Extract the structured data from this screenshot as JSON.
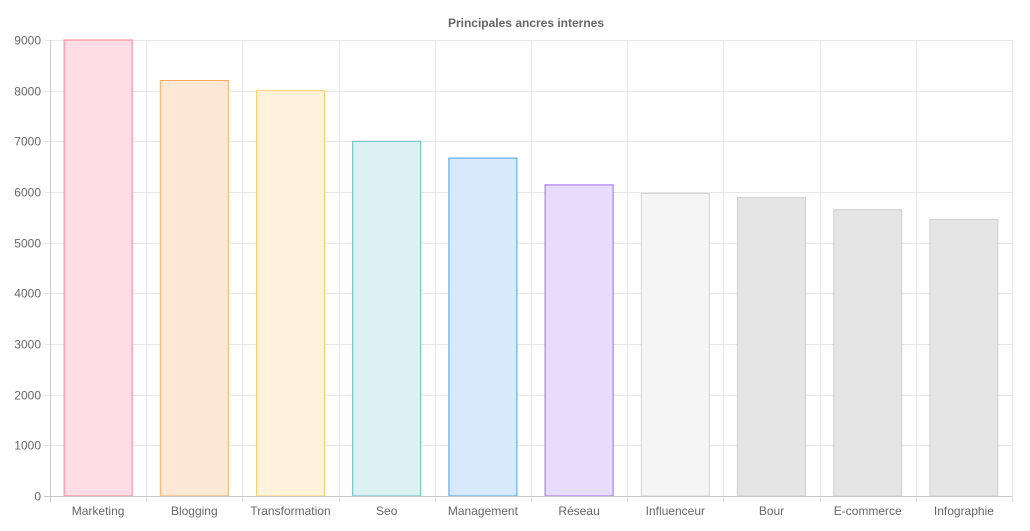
{
  "chart_data": {
    "type": "bar",
    "title": "Principales ancres internes",
    "xlabel": "",
    "ylabel": "",
    "categories": [
      "Marketing",
      "Blogging",
      "Transformation",
      "Seo",
      "Management",
      "Réseau",
      "Influenceur",
      "Bour",
      "E-commerce",
      "Infographie"
    ],
    "values": [
      9000,
      8200,
      8000,
      7000,
      6670,
      6140,
      5970,
      5890,
      5650,
      5460
    ],
    "ylim": [
      0,
      9000
    ],
    "yticks": [
      "0",
      "1000",
      "2000",
      "3000",
      "4000",
      "5000",
      "6000",
      "7000",
      "8000",
      "9000"
    ],
    "grid": true,
    "legend": "none",
    "bar_colors": [
      {
        "fill": "#ffdde4",
        "stroke": "#ff7f99"
      },
      {
        "fill": "#ffe9d6",
        "stroke": "#ffab5c"
      },
      {
        "fill": "#fff3dc",
        "stroke": "#ffcf6a"
      },
      {
        "fill": "#dbf1f2",
        "stroke": "#5cbfbf"
      },
      {
        "fill": "#d7eafb",
        "stroke": "#48a4e8"
      },
      {
        "fill": "#e8dcfd",
        "stroke": "#9c6cf0"
      },
      {
        "fill": "#f5f5f6",
        "stroke": "#d3d4d6"
      },
      {
        "fill": "#e5e5e5",
        "stroke": "#cfcfcf"
      },
      {
        "fill": "#e5e5e5",
        "stroke": "#cfcfcf"
      },
      {
        "fill": "#e5e5e5",
        "stroke": "#cfcfcf"
      }
    ]
  }
}
